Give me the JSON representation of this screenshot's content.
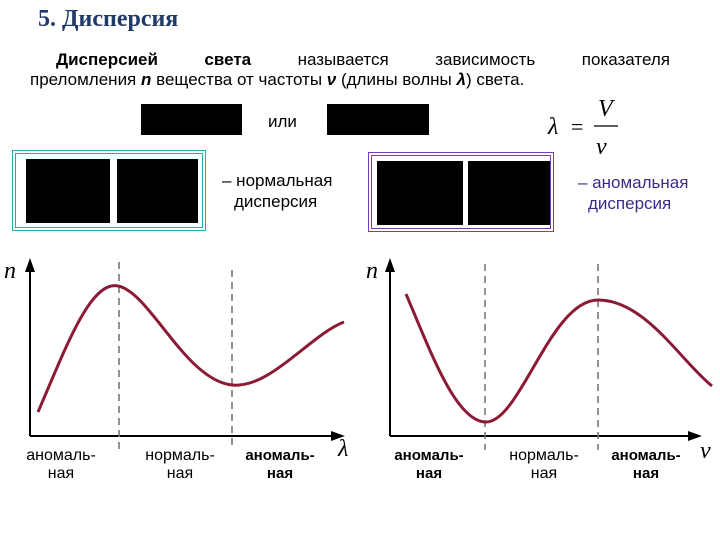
{
  "title": "5. Дисперсия",
  "definition": {
    "word1": "Дисперсией",
    "word2": "света",
    "word3": "называется",
    "word4": "зависимость",
    "word5": "показателя",
    "line2_a": "преломления ",
    "n_symbol": "n",
    "line2_b": " вещества от частоты ",
    "nu_symbol": "ν",
    "line2_c": " (длины волны ",
    "lambda_symbol": "λ",
    "line2_d": ") света."
  },
  "connector": "или",
  "formula": {
    "lhs": "λ",
    "eq": "=",
    "numerator": "V",
    "denominator": "ν"
  },
  "normal_label": {
    "line1": "– нормальная",
    "line2": "дисперсия"
  },
  "anomalous_label": {
    "line1": "– аномальная",
    "line2": "дисперсия"
  },
  "graph_left": {
    "y_axis_label": "n",
    "x_axis_label": "λ",
    "zones": [
      {
        "line1": "аномаль-",
        "line2": "ная"
      },
      {
        "line1": "нормаль-",
        "line2": "ная"
      },
      {
        "line1": "аномаль-",
        "line2": "ная"
      }
    ]
  },
  "graph_right": {
    "y_axis_label": "n",
    "x_axis_label": "ν",
    "zones": [
      {
        "line1": "аномаль-",
        "line2": "ная"
      },
      {
        "line1": "нормаль-",
        "line2": "ная"
      },
      {
        "line1": "аномаль-",
        "line2": "ная"
      }
    ]
  },
  "colors": {
    "title": "#1f3a6b",
    "curve": "#8b1a35",
    "teal_frame": "#2aa9a9",
    "purple_frame": "#7a3ea8",
    "anomalous_text": "#3c2a8a"
  }
}
